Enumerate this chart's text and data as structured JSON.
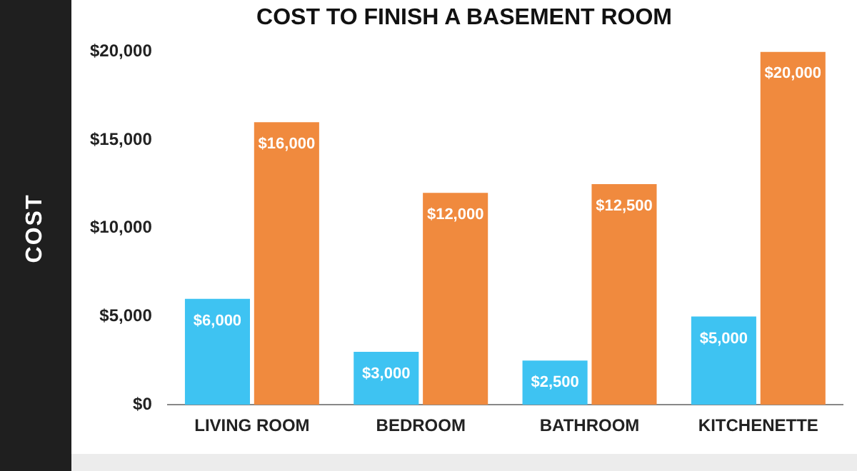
{
  "chart_data": {
    "type": "bar",
    "title": "COST TO FINISH A BASEMENT ROOM",
    "ylabel": "COST",
    "categories": [
      "LIVING ROOM",
      "BEDROOM",
      "BATHROOM",
      "KITCHENETTE"
    ],
    "series": [
      {
        "color": "#3ec3f2",
        "values": [
          6000,
          3000,
          2500,
          5000
        ],
        "value_labels": [
          "$6,000",
          "$3,000",
          "$2,500",
          "$5,000"
        ]
      },
      {
        "color": "#f08a3e",
        "values": [
          16000,
          12000,
          12500,
          20000
        ],
        "value_labels": [
          "$16,000",
          "$12,000",
          "$12,500",
          "$20,000"
        ]
      }
    ],
    "ylim": [
      0,
      20000
    ],
    "yticks": [
      {
        "value": 0,
        "label": "$0"
      },
      {
        "value": 5000,
        "label": "$5,000"
      },
      {
        "value": 10000,
        "label": "$10,000"
      },
      {
        "value": 15000,
        "label": "$15,000"
      },
      {
        "value": 20000,
        "label": "$20,000"
      }
    ],
    "grid": false,
    "legend": false
  }
}
